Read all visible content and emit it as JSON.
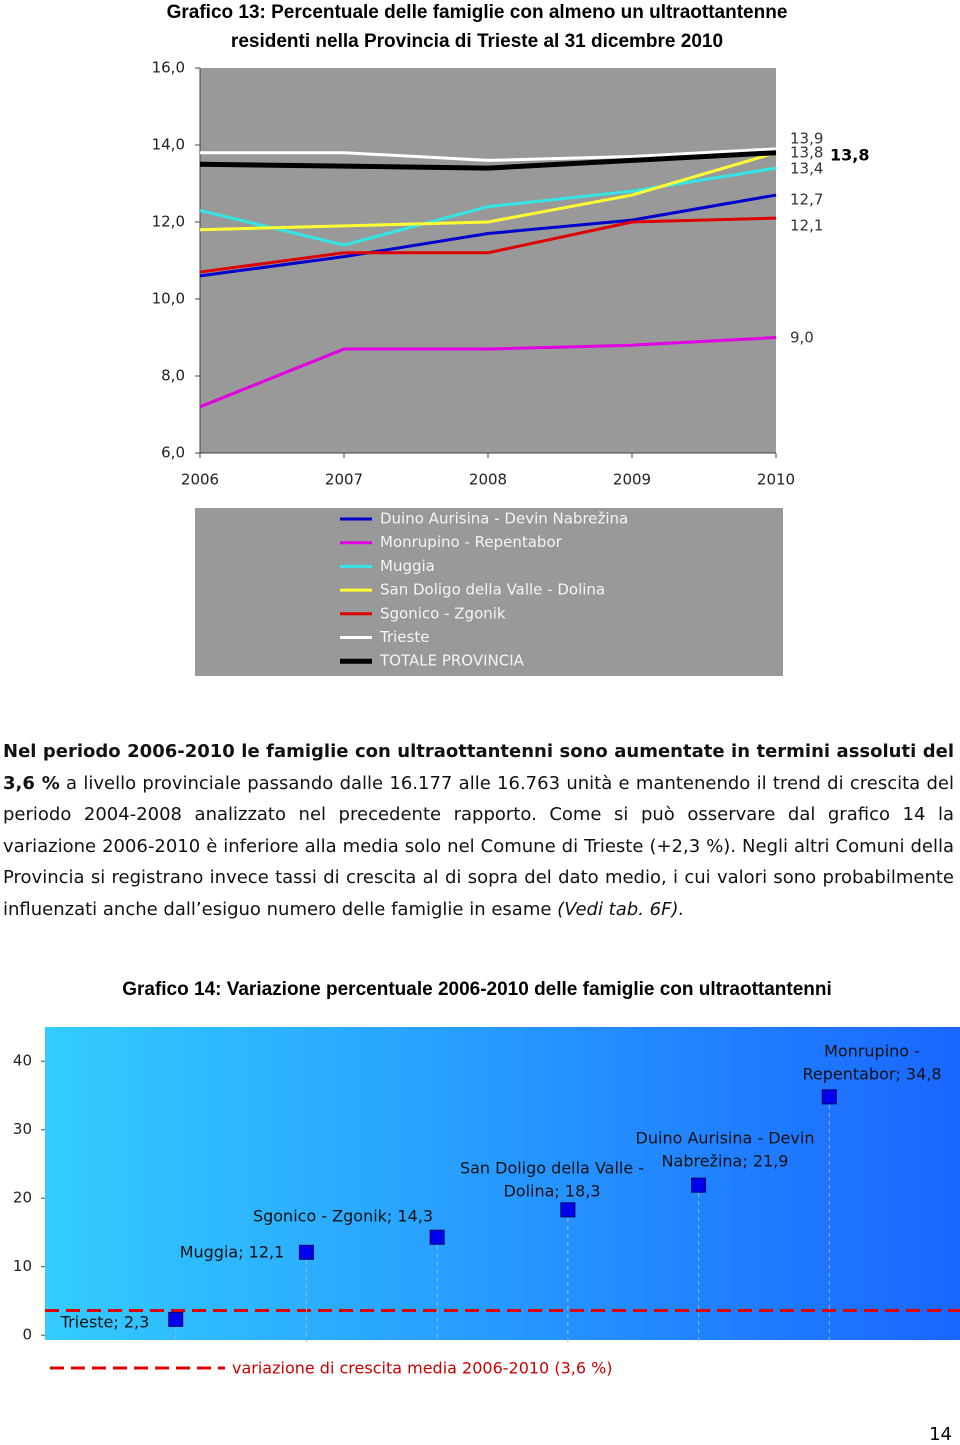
{
  "chart_data": [
    {
      "type": "line",
      "title": [
        "Grafico 13: Percentuale delle famiglie con almeno un ultraottantenne",
        "residenti nella Provincia di Trieste al 31 dicembre 2010"
      ],
      "categories": [
        "2006",
        "2007",
        "2008",
        "2009",
        "2010"
      ],
      "ylim": [
        6,
        16
      ],
      "yticks": [
        {
          "value": 6,
          "label": "6,0"
        },
        {
          "value": 8,
          "label": "8,0"
        },
        {
          "value": 10,
          "label": "10,0"
        },
        {
          "value": 12,
          "label": "12,0"
        },
        {
          "value": 14,
          "label": "14,0"
        },
        {
          "value": 16,
          "label": "16,0"
        }
      ],
      "grid": false,
      "legend": "bottom",
      "series": [
        {
          "name": "Duino Aurisina - Devin Nabrežina",
          "color": "#0000cc",
          "values": [
            10.6,
            11.1,
            11.7,
            12.05,
            12.7
          ],
          "value_labels": [
            null,
            null,
            null,
            null,
            "12,7"
          ]
        },
        {
          "name": "Monrupino - Repentabor",
          "color": "#e000e0",
          "values": [
            7.2,
            8.7,
            8.7,
            8.8,
            9.0
          ],
          "value_labels": [
            null,
            null,
            null,
            null,
            "9,0"
          ]
        },
        {
          "name": "Muggia",
          "color": "#33e6e6",
          "values": [
            12.3,
            11.4,
            12.4,
            12.8,
            13.4
          ],
          "value_labels": [
            null,
            null,
            null,
            null,
            "13,4"
          ]
        },
        {
          "name": "San Doligo della Valle - Dolina",
          "color": "#ffff33",
          "values": [
            11.8,
            11.9,
            12.0,
            12.7,
            13.8
          ],
          "value_labels": [
            null,
            null,
            null,
            null,
            "13,8"
          ]
        },
        {
          "name": "Sgonico - Zgonik",
          "color": "#dd0000",
          "values": [
            10.7,
            11.2,
            11.2,
            12.0,
            12.1
          ],
          "value_labels": [
            null,
            null,
            null,
            null,
            "12,1"
          ]
        },
        {
          "name": "Trieste",
          "color": "#ffffff",
          "values": [
            13.8,
            13.8,
            13.6,
            13.7,
            13.9
          ],
          "value_labels": [
            null,
            null,
            null,
            null,
            "13,9"
          ]
        },
        {
          "name": "TOTALE PROVINCIA",
          "color": "#000000",
          "values": [
            13.5,
            13.45,
            13.4,
            13.6,
            13.8
          ],
          "value_labels": [
            null,
            null,
            null,
            null,
            "13,8"
          ]
        }
      ]
    },
    {
      "type": "scatter",
      "title": "Grafico 14: Variazione percentuale 2006-2010 delle famiglie con ultraottantenni",
      "categories": [
        "Trieste",
        "Muggia",
        "Sgonico - Zgonik",
        "San Doligo della Valle - Dolina",
        "Duino Aurisina - Devin Nabrežina",
        "Monrupino - Repentabor"
      ],
      "values": [
        2.3,
        12.1,
        14.3,
        18.3,
        21.9,
        34.8
      ],
      "value_labels": [
        [
          "Trieste; 2,3"
        ],
        [
          "Muggia; 12,1"
        ],
        [
          "Sgonico - Zgonik; 14,3"
        ],
        [
          "San Doligo della Valle -",
          "Dolina; 18,3"
        ],
        [
          "Duino Aurisina - Devin",
          "Nabrežina; 21,9"
        ],
        [
          "Monrupino -",
          "Repentabor; 34,8"
        ]
      ],
      "color": "#0000ee",
      "ylim": [
        -1,
        45
      ],
      "yticks": [
        0,
        10,
        20,
        30,
        40
      ],
      "reference_line": {
        "value": 3.6,
        "label": "variazione di crescita media 2006-2010 (3,6 %)",
        "color": "#e00000"
      }
    }
  ],
  "paragraph": [
    {
      "text": "Nel periodo 2006-2010 le famiglie con ultraottantenni sono aumentate in termini assoluti del 3,6 %",
      "style": "bold"
    },
    {
      "text": " a livello provinciale passando dalle 16.177 alle 16.763 unità e mantenendo il trend di crescita del periodo 2004-2008 analizzato nel precedente rapporto. Come si può osservare dal grafico 14 la variazione 2006-2010 è inferiore alla media solo nel Comune di Trieste (+2,3 %). Negli altri Comuni della Provincia si registrano invece tassi di crescita al di sopra del dato medio, i cui valori sono probabilmente influenzati anche dall’esiguo numero delle famiglie in esame ",
      "style": "normal"
    },
    {
      "text": "(Vedi tab. 6F).",
      "style": "italic"
    }
  ],
  "page_number": "14"
}
